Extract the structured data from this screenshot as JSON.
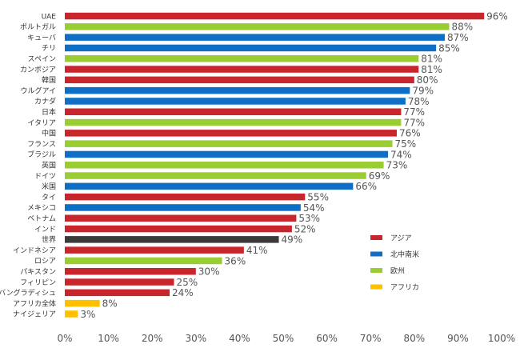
{
  "chart_data": {
    "type": "bar",
    "orientation": "horizontal",
    "title": "",
    "xlabel": "",
    "ylabel": "",
    "xlim": [
      0,
      100
    ],
    "x_ticks": [
      0,
      10,
      20,
      30,
      40,
      50,
      60,
      70,
      80,
      90,
      100
    ],
    "tick_suffix": "%",
    "value_suffix": "%",
    "grid": false,
    "legend_position": "lower-right",
    "colors": {
      "asia": "#c9252c",
      "americas": "#0f6fc6",
      "europe": "#9acd32",
      "africa": "#ffc000",
      "world": "#3b3b3b"
    },
    "legend": [
      {
        "key": "asia",
        "label": "アジア"
      },
      {
        "key": "americas",
        "label": "北中南米"
      },
      {
        "key": "europe",
        "label": "欧州"
      },
      {
        "key": "africa",
        "label": "アフリカ"
      }
    ],
    "bars": [
      {
        "label": "UAE",
        "value": 96,
        "group": "asia"
      },
      {
        "label": "ポルトガル",
        "value": 88,
        "group": "europe"
      },
      {
        "label": "キューバ",
        "value": 87,
        "group": "americas"
      },
      {
        "label": "チリ",
        "value": 85,
        "group": "americas"
      },
      {
        "label": "スペイン",
        "value": 81,
        "group": "europe"
      },
      {
        "label": "カンボジア",
        "value": 81,
        "group": "asia"
      },
      {
        "label": "韓国",
        "value": 80,
        "group": "asia"
      },
      {
        "label": "ウルグアイ",
        "value": 79,
        "group": "americas"
      },
      {
        "label": "カナダ",
        "value": 78,
        "group": "americas"
      },
      {
        "label": "日本",
        "value": 77,
        "group": "asia"
      },
      {
        "label": "イタリア",
        "value": 77,
        "group": "europe"
      },
      {
        "label": "中国",
        "value": 76,
        "group": "asia"
      },
      {
        "label": "フランス",
        "value": 75,
        "group": "europe"
      },
      {
        "label": "ブラジル",
        "value": 74,
        "group": "americas"
      },
      {
        "label": "英国",
        "value": 73,
        "group": "europe"
      },
      {
        "label": "ドイツ",
        "value": 69,
        "group": "europe"
      },
      {
        "label": "米国",
        "value": 66,
        "group": "americas"
      },
      {
        "label": "タイ",
        "value": 55,
        "group": "asia"
      },
      {
        "label": "メキシコ",
        "value": 54,
        "group": "americas"
      },
      {
        "label": "ベトナム",
        "value": 53,
        "group": "asia"
      },
      {
        "label": "インド",
        "value": 52,
        "group": "asia"
      },
      {
        "label": "世界",
        "value": 49,
        "group": "world"
      },
      {
        "label": "インドネシア",
        "value": 41,
        "group": "asia"
      },
      {
        "label": "ロシア",
        "value": 36,
        "group": "europe"
      },
      {
        "label": "パキスタン",
        "value": 30,
        "group": "asia"
      },
      {
        "label": "フィリピン",
        "value": 25,
        "group": "asia"
      },
      {
        "label": "バングラディシュ",
        "value": 24,
        "group": "asia"
      },
      {
        "label": "アフリカ全体",
        "value": 8,
        "group": "africa"
      },
      {
        "label": "ナイジェリア",
        "value": 3,
        "group": "africa"
      }
    ]
  }
}
